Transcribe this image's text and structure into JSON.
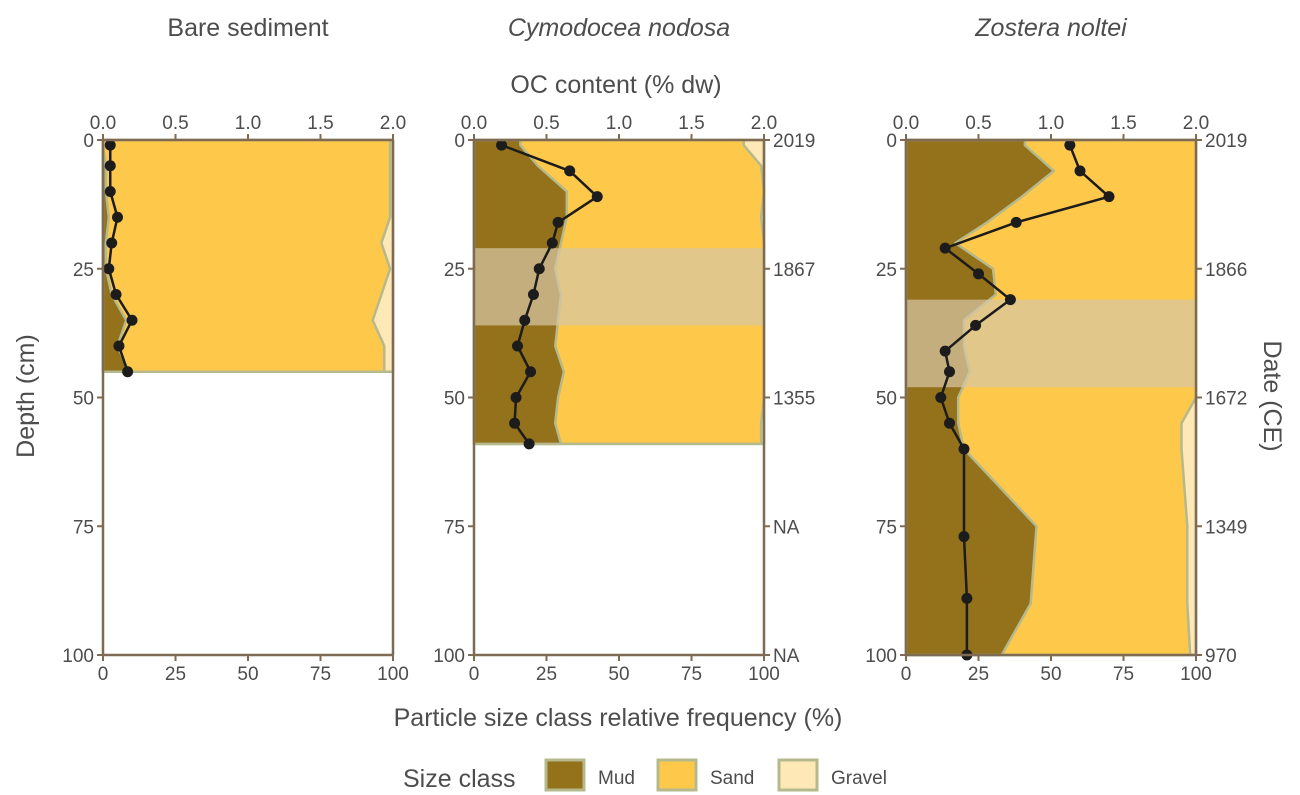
{
  "chart_data": {
    "type": "area",
    "top_axis_label": "OC content (% dw)",
    "bottom_axis_label": "Particle size class relative frequency (%)",
    "left_axis_label": "Depth (cm)",
    "right_axis_label": "Date (CE)",
    "freq_ticks": [
      "0",
      "25",
      "50",
      "75",
      "100"
    ],
    "oc_ticks": [
      "0.0",
      "0.5",
      "1.0",
      "1.5",
      "2.0"
    ],
    "depth_ticks": [
      "0",
      "25",
      "50",
      "75",
      "100"
    ],
    "xlim_freq": [
      0,
      100
    ],
    "xlim_oc": [
      0,
      2
    ],
    "ylim_depth": [
      0,
      100
    ],
    "legend": {
      "title": "Size class",
      "position": "bottom",
      "items": [
        {
          "label": "Mud",
          "color": "#94711b"
        },
        {
          "label": "Sand",
          "color": "#fec94a"
        },
        {
          "label": "Gravel",
          "color": "#fee9b6"
        }
      ]
    },
    "colors": {
      "mud": "#94711b",
      "sand": "#fec94a",
      "gravel": "#fee9b6",
      "outline": "#b5b98c",
      "axis": "#7f6a53",
      "oc_line": "#1c1c1c",
      "dating_band": "#d7c6a4"
    },
    "panels": [
      {
        "title": "Bare sediment",
        "italic": false,
        "date_ticks": [],
        "depth_profile": [
          1,
          5,
          10,
          15,
          20,
          25,
          30,
          35,
          40,
          45
        ],
        "mud_cum": [
          0,
          1,
          1,
          2,
          1,
          1,
          3,
          8,
          5,
          9
        ],
        "sand_cum": [
          99,
          99,
          99,
          99,
          96,
          99,
          96,
          93,
          97,
          97
        ],
        "gravel_cum": [
          100,
          100,
          100,
          100,
          100,
          100,
          100,
          100,
          100,
          100
        ],
        "oc_depth": [
          1,
          5,
          10,
          15,
          20,
          25,
          30,
          35,
          40,
          45
        ],
        "oc_values": [
          0.05,
          0.05,
          0.05,
          0.1,
          0.06,
          0.04,
          0.09,
          0.2,
          0.11,
          0.17
        ],
        "max_depth": 45,
        "band": null
      },
      {
        "title": "Cymodocea nodosa",
        "italic": true,
        "date_ticks": [
          {
            "depth": 0,
            "label": "2019"
          },
          {
            "depth": 25,
            "label": "1867"
          },
          {
            "depth": 50,
            "label": "1355"
          },
          {
            "depth": 75,
            "label": "NA"
          },
          {
            "depth": 100,
            "label": "NA"
          }
        ],
        "depth_profile": [
          1,
          5,
          10,
          15,
          20,
          25,
          30,
          35,
          40,
          45,
          50,
          55,
          59
        ],
        "mud_cum": [
          16,
          22,
          32,
          32,
          30,
          28,
          30,
          29,
          28,
          31,
          29,
          28,
          30
        ],
        "sand_cum": [
          93,
          99,
          100,
          99,
          100,
          100,
          100,
          100,
          100,
          100,
          100,
          99,
          99
        ],
        "gravel_cum": [
          100,
          100,
          100,
          100,
          100,
          100,
          100,
          100,
          100,
          100,
          100,
          100,
          100
        ],
        "oc_depth": [
          1,
          6,
          11,
          16,
          20,
          25,
          30,
          35,
          40,
          45,
          50,
          55,
          59
        ],
        "oc_values": [
          0.19,
          0.66,
          0.85,
          0.58,
          0.54,
          0.45,
          0.41,
          0.35,
          0.3,
          0.39,
          0.29,
          0.28,
          0.38
        ],
        "max_depth": 59,
        "band": [
          21,
          36
        ]
      },
      {
        "title": "Zostera noltei",
        "italic": true,
        "date_ticks": [
          {
            "depth": 0,
            "label": "2019"
          },
          {
            "depth": 25,
            "label": "1866"
          },
          {
            "depth": 50,
            "label": "1672"
          },
          {
            "depth": 75,
            "label": "1349"
          },
          {
            "depth": 100,
            "label": "970"
          }
        ],
        "depth_profile": [
          1,
          6,
          11,
          16,
          20,
          25,
          30,
          35,
          40,
          45,
          50,
          55,
          60,
          75,
          90,
          100
        ],
        "mud_cum": [
          41,
          51,
          40,
          28,
          17,
          30,
          31,
          20,
          20,
          22,
          18,
          18,
          20,
          45,
          43,
          33
        ],
        "sand_cum": [
          100,
          100,
          100,
          100,
          100,
          100,
          100,
          100,
          100,
          100,
          100,
          95,
          95,
          97,
          97,
          98
        ],
        "gravel_cum": [
          100,
          100,
          100,
          100,
          100,
          100,
          100,
          100,
          100,
          100,
          100,
          100,
          100,
          100,
          100,
          100
        ],
        "oc_depth": [
          1,
          6,
          11,
          16,
          21,
          26,
          31,
          36,
          41,
          45,
          50,
          55,
          60,
          77,
          89,
          100
        ],
        "oc_values": [
          1.13,
          1.2,
          1.4,
          0.76,
          0.27,
          0.5,
          0.72,
          0.48,
          0.27,
          0.3,
          0.24,
          0.3,
          0.4,
          0.4,
          0.42,
          0.42
        ],
        "max_depth": 100,
        "band": [
          31,
          48
        ]
      }
    ]
  }
}
